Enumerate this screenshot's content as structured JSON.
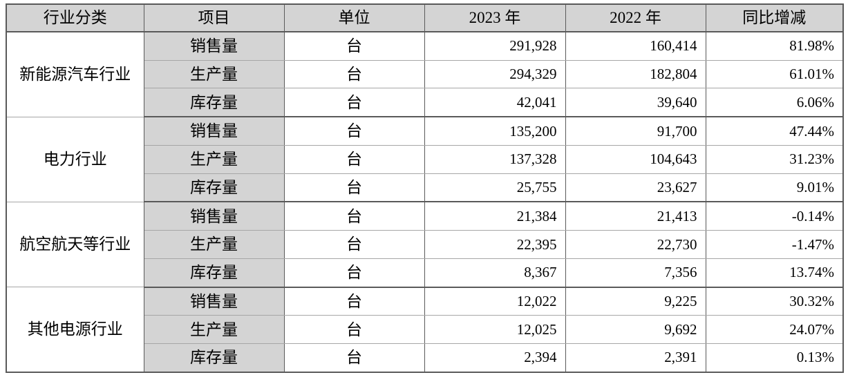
{
  "table": {
    "headers": [
      "行业分类",
      "项目",
      "单位",
      "2023 年",
      "2022 年",
      "同比增减"
    ],
    "groups": [
      {
        "industry": "新能源汽车行业",
        "rows": [
          {
            "item": "销售量",
            "unit": "台",
            "y2023": "291,928",
            "y2022": "160,414",
            "yoy": "81.98%"
          },
          {
            "item": "生产量",
            "unit": "台",
            "y2023": "294,329",
            "y2022": "182,804",
            "yoy": "61.01%"
          },
          {
            "item": "库存量",
            "unit": "台",
            "y2023": "42,041",
            "y2022": "39,640",
            "yoy": "6.06%"
          }
        ]
      },
      {
        "industry": "电力行业",
        "rows": [
          {
            "item": "销售量",
            "unit": "台",
            "y2023": "135,200",
            "y2022": "91,700",
            "yoy": "47.44%"
          },
          {
            "item": "生产量",
            "unit": "台",
            "y2023": "137,328",
            "y2022": "104,643",
            "yoy": "31.23%"
          },
          {
            "item": "库存量",
            "unit": "台",
            "y2023": "25,755",
            "y2022": "23,627",
            "yoy": "9.01%"
          }
        ]
      },
      {
        "industry": "航空航天等行业",
        "rows": [
          {
            "item": "销售量",
            "unit": "台",
            "y2023": "21,384",
            "y2022": "21,413",
            "yoy": "-0.14%"
          },
          {
            "item": "生产量",
            "unit": "台",
            "y2023": "22,395",
            "y2022": "22,730",
            "yoy": "-1.47%"
          },
          {
            "item": "库存量",
            "unit": "台",
            "y2023": "8,367",
            "y2022": "7,356",
            "yoy": "13.74%"
          }
        ]
      },
      {
        "industry": "其他电源行业",
        "rows": [
          {
            "item": "销售量",
            "unit": "台",
            "y2023": "12,022",
            "y2022": "9,225",
            "yoy": "30.32%"
          },
          {
            "item": "生产量",
            "unit": "台",
            "y2023": "12,025",
            "y2022": "9,692",
            "yoy": "24.07%"
          },
          {
            "item": "库存量",
            "unit": "台",
            "y2023": "2,394",
            "y2022": "2,391",
            "yoy": "0.13%"
          }
        ]
      }
    ],
    "colors": {
      "header_bg": "#d4d4d4",
      "item_col_bg": "#d4d4d4",
      "border_dark": "#595959",
      "border_light": "#a6a6a6"
    }
  }
}
